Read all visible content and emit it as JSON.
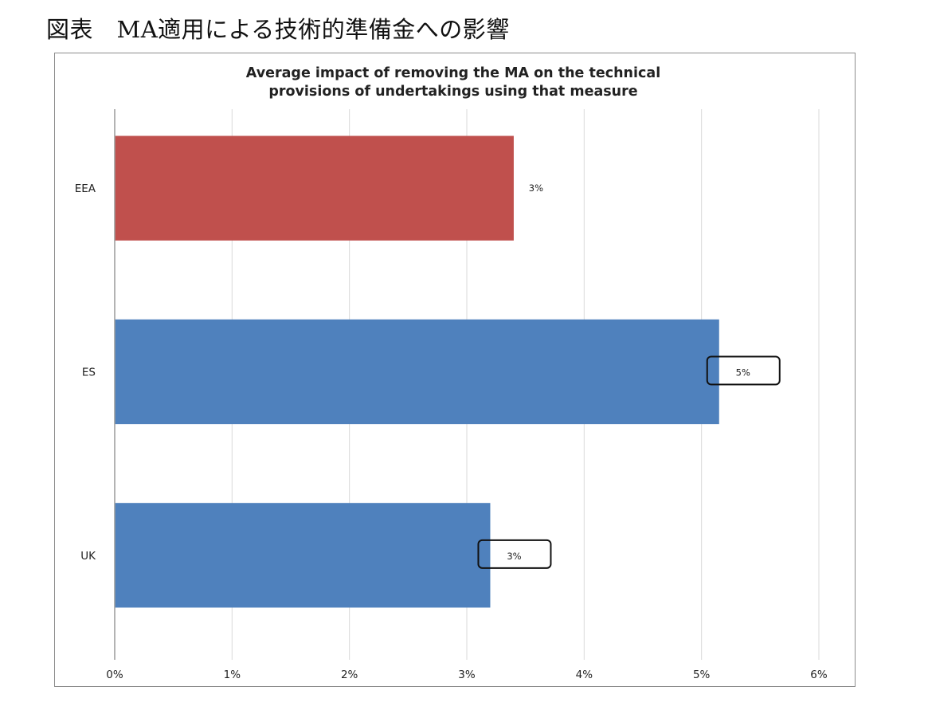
{
  "caption": "図表　MA適用による技術的準備金への影響",
  "chart_data": {
    "type": "bar",
    "orientation": "horizontal",
    "title_lines": [
      "Average impact of removing the MA on the technical",
      "provisions of undertakings using that measure"
    ],
    "categories": [
      "EEA",
      "ES",
      "UK"
    ],
    "values": [
      3.4,
      5.15,
      3.2
    ],
    "data_labels": [
      "3%",
      "5%",
      "3%"
    ],
    "highlighted_labels": [
      false,
      true,
      true
    ],
    "bar_colors": [
      "#c0504d",
      "#4f81bd",
      "#4f81bd"
    ],
    "x_ticks": [
      "0%",
      "1%",
      "2%",
      "3%",
      "4%",
      "5%",
      "6%"
    ],
    "xlim": [
      0,
      6
    ],
    "x_unit": "%",
    "grid": true,
    "legend": "none"
  }
}
